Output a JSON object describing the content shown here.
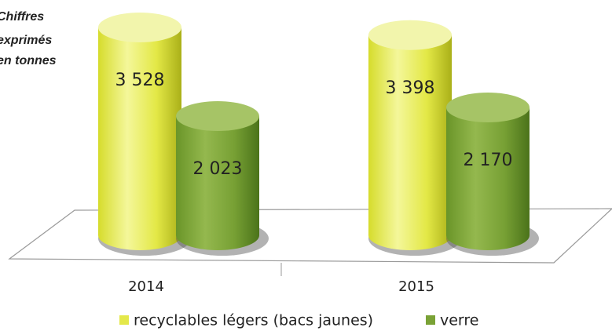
{
  "chart_data": {
    "type": "bar",
    "annotation": [
      "Chiffres",
      "exprimés",
      "en tonnes"
    ],
    "categories": [
      "2014",
      "2015"
    ],
    "series": [
      {
        "name": "recyclables légers (bacs jaunes)",
        "color": "#e4e84a",
        "values": [
          3528,
          3398
        ],
        "value_labels": [
          "3 528",
          "3 398"
        ]
      },
      {
        "name": "verre",
        "color": "#7aa236",
        "values": [
          2023,
          2170
        ],
        "value_labels": [
          "2 023",
          "2 170"
        ]
      }
    ]
  }
}
